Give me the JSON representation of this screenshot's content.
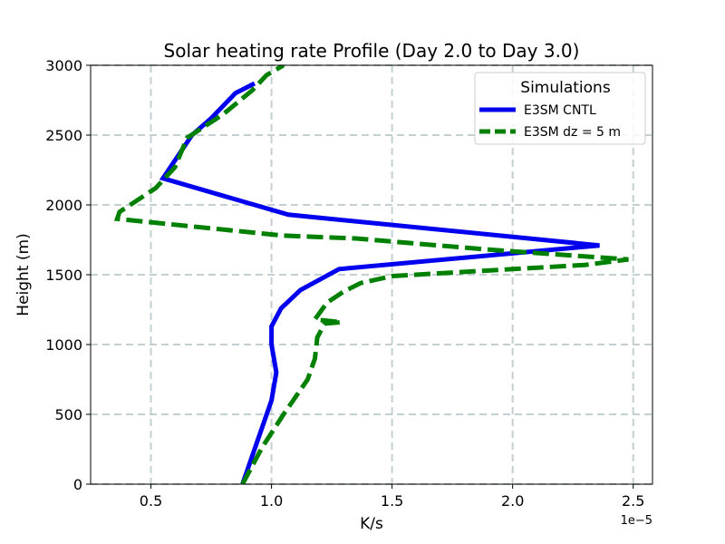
{
  "chart_data": {
    "type": "line",
    "title": "Solar heating rate Profile (Day 2.0 to Day 3.0)",
    "xlabel": "K/s",
    "ylabel": "Height (m)",
    "x_offset_label": "1e−5",
    "xlim": [
      0.25,
      2.58
    ],
    "ylim": [
      0,
      3000
    ],
    "xticks": [
      0.5,
      1.0,
      1.5,
      2.0,
      2.5
    ],
    "xtick_labels": [
      "0.5",
      "1.0",
      "1.5",
      "2.0",
      "2.5"
    ],
    "yticks": [
      0,
      500,
      1000,
      1500,
      2000,
      2500,
      3000
    ],
    "ytick_labels": [
      "0",
      "500",
      "1000",
      "1500",
      "2000",
      "2500",
      "3000"
    ],
    "grid": true,
    "legend": {
      "title": "Simulations",
      "position": "top-right"
    },
    "series": [
      {
        "name": "E3SM CNTL",
        "color": "#0000ee",
        "style": "solid",
        "points": [
          [
            0.88,
            0
          ],
          [
            0.93,
            250
          ],
          [
            0.97,
            450
          ],
          [
            1.0,
            600
          ],
          [
            1.02,
            800
          ],
          [
            1.0,
            1000
          ],
          [
            1.0,
            1130
          ],
          [
            1.04,
            1260
          ],
          [
            1.12,
            1390
          ],
          [
            1.28,
            1540
          ],
          [
            2.36,
            1710
          ],
          [
            1.07,
            1930
          ],
          [
            0.55,
            2190
          ],
          [
            0.67,
            2500
          ],
          [
            0.75,
            2620
          ],
          [
            0.85,
            2800
          ],
          [
            0.93,
            2870
          ]
        ]
      },
      {
        "name": "E3SM dz = 5 m",
        "color": "#008000",
        "style": "dashed",
        "points": [
          [
            0.88,
            0
          ],
          [
            0.96,
            260
          ],
          [
            1.05,
            500
          ],
          [
            1.15,
            750
          ],
          [
            1.18,
            900
          ],
          [
            1.19,
            1050
          ],
          [
            1.22,
            1150
          ],
          [
            1.29,
            1160
          ],
          [
            1.18,
            1180
          ],
          [
            1.23,
            1300
          ],
          [
            1.3,
            1380
          ],
          [
            1.37,
            1440
          ],
          [
            1.5,
            1490
          ],
          [
            2.0,
            1540
          ],
          [
            2.3,
            1570
          ],
          [
            2.48,
            1610
          ],
          [
            1.9,
            1680
          ],
          [
            1.62,
            1720
          ],
          [
            1.35,
            1760
          ],
          [
            1.05,
            1780
          ],
          [
            0.36,
            1900
          ],
          [
            0.37,
            1950
          ],
          [
            0.52,
            2120
          ],
          [
            0.6,
            2270
          ],
          [
            0.65,
            2480
          ],
          [
            0.8,
            2650
          ],
          [
            0.92,
            2820
          ],
          [
            0.98,
            2930
          ],
          [
            1.05,
            3000
          ]
        ]
      }
    ]
  }
}
